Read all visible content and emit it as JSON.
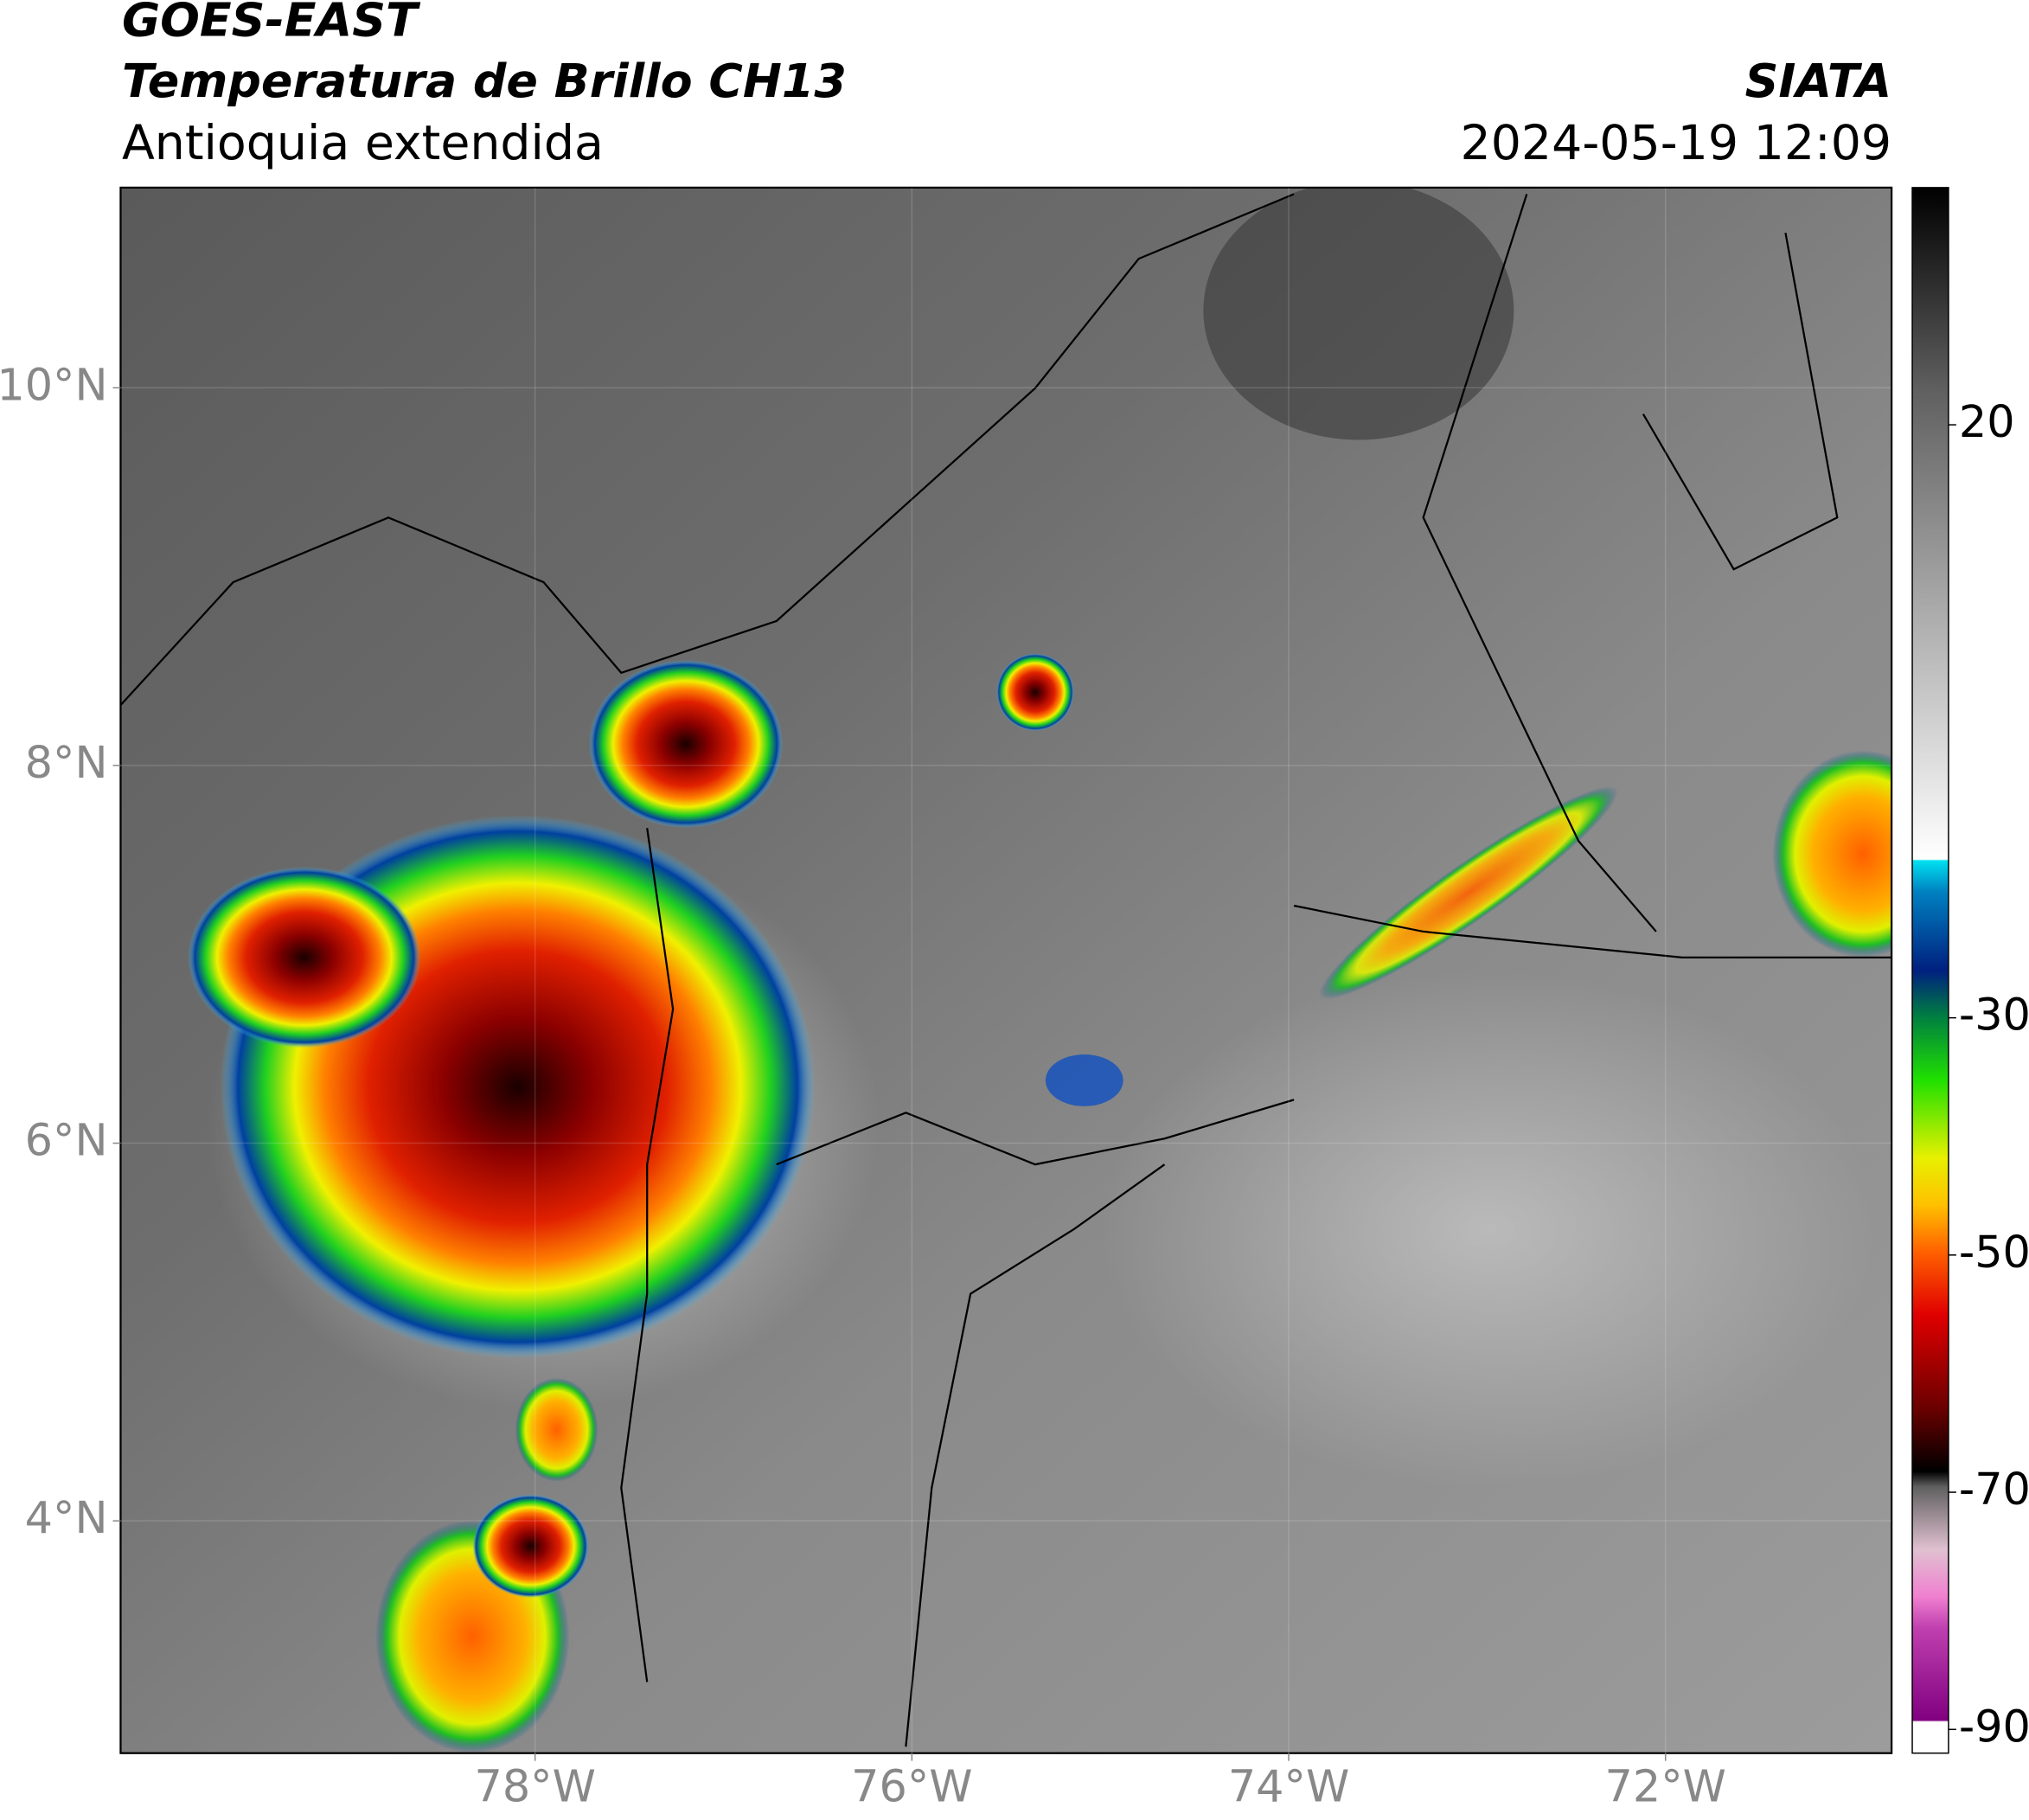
{
  "chart_data": {
    "type": "map",
    "title": "GOES-EAST",
    "subtitle": "Temperatura de Brillo CH13",
    "region": "Antioquia extendida",
    "source": "SIATA",
    "datetime": "2024-05-19 12:09",
    "xlim": [
      -80.2,
      -70.8
    ],
    "ylim": [
      2.77,
      11.06
    ],
    "xticks": [
      {
        "value": -78,
        "label": "78°W"
      },
      {
        "value": -76,
        "label": "76°W"
      },
      {
        "value": -74,
        "label": "74°W"
      },
      {
        "value": -72,
        "label": "72°W"
      }
    ],
    "yticks": [
      {
        "value": 4,
        "label": "4°N"
      },
      {
        "value": 6,
        "label": "6°N"
      },
      {
        "value": 8,
        "label": "8°N"
      },
      {
        "value": 10,
        "label": "10°N"
      }
    ],
    "grid": true,
    "colorbar": {
      "lim": [
        -92,
        40
      ],
      "ticks": [
        20,
        -30,
        -50,
        -70,
        -90
      ]
    }
  }
}
